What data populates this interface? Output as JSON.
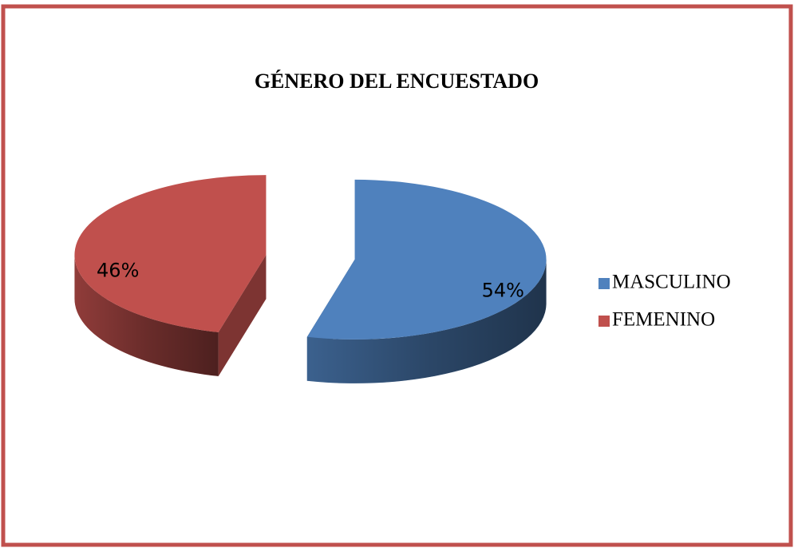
{
  "chart_data": {
    "type": "pie",
    "title": "GÉNERO DEL ENCUESTADO",
    "categories": [
      "MASCULINO",
      "FEMENINO"
    ],
    "values": [
      54,
      46
    ],
    "value_labels": [
      "54%",
      "46%"
    ],
    "colors": [
      "#4f81bd",
      "#c0504d"
    ],
    "legend": "right"
  }
}
